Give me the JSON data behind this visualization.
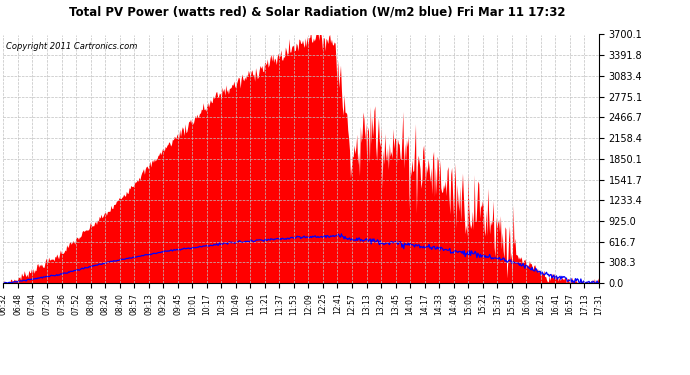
{
  "title": "Total PV Power (watts red) & Solar Radiation (W/m2 blue) Fri Mar 11 17:32",
  "copyright": "Copyright 2011 Cartronics.com",
  "y_ticks": [
    0.0,
    308.3,
    616.7,
    925.0,
    1233.4,
    1541.7,
    1850.1,
    2158.4,
    2466.7,
    2775.1,
    3083.4,
    3391.8,
    3700.1
  ],
  "y_max": 3700.1,
  "y_min": 0.0,
  "pv_color": "#ff0000",
  "solar_color": "#0000ff",
  "bg_color": "#ffffff",
  "grid_color": "#c0c0c0",
  "x_labels": [
    "06:32",
    "06:48",
    "07:04",
    "07:20",
    "07:36",
    "07:52",
    "08:08",
    "08:24",
    "08:40",
    "08:57",
    "09:13",
    "09:29",
    "09:45",
    "10:01",
    "10:17",
    "10:33",
    "10:49",
    "11:05",
    "11:21",
    "11:37",
    "11:53",
    "12:09",
    "12:25",
    "12:41",
    "12:57",
    "13:13",
    "13:29",
    "13:45",
    "14:01",
    "14:17",
    "14:33",
    "14:49",
    "15:05",
    "15:21",
    "15:37",
    "15:53",
    "16:09",
    "16:25",
    "16:41",
    "16:57",
    "17:13",
    "17:31"
  ]
}
